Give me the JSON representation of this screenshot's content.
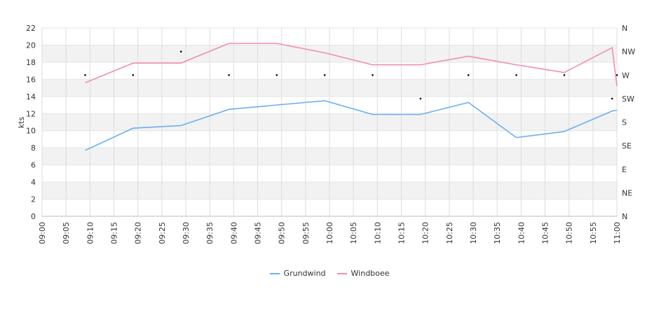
{
  "chart_data": {
    "type": "line",
    "ylabel": "kts",
    "ylim": [
      0,
      22
    ],
    "y_ticks": [
      "0",
      "2",
      "4",
      "6",
      "8",
      "10",
      "12",
      "14",
      "16",
      "18",
      "20",
      "22"
    ],
    "x_ticks": [
      "09:00",
      "09:05",
      "09:10",
      "09:15",
      "09:20",
      "09:25",
      "09:30",
      "09:35",
      "09:40",
      "09:45",
      "09:50",
      "09:55",
      "10:00",
      "10:05",
      "10:10",
      "10:15",
      "10:20",
      "10:25",
      "10:30",
      "10:35",
      "10:40",
      "10:45",
      "10:50",
      "10:55",
      "11:00"
    ],
    "x_range": [
      "09:00",
      "11:00"
    ],
    "right_axis_ticks": [
      "N",
      "NE",
      "E",
      "SE",
      "S",
      "SW",
      "W",
      "NW",
      "N"
    ],
    "grid": true,
    "legend_position": "bottom-center",
    "series": [
      {
        "name": "Grundwind",
        "color": "#6aaff0",
        "x": [
          "09:09",
          "09:19",
          "09:29",
          "09:39",
          "09:49",
          "09:59",
          "10:09",
          "10:19",
          "10:29",
          "10:39",
          "10:49",
          "10:59",
          "11:00"
        ],
        "values": [
          7.7,
          10.3,
          10.6,
          12.5,
          13.0,
          13.5,
          11.9,
          11.9,
          13.3,
          9.2,
          9.9,
          12.3,
          12.4
        ]
      },
      {
        "name": "Windboee",
        "color": "#f08cb8",
        "x": [
          "09:09",
          "09:19",
          "09:29",
          "09:39",
          "09:49",
          "09:59",
          "10:09",
          "10:19",
          "10:29",
          "10:39",
          "10:49",
          "10:59",
          "11:00"
        ],
        "values": [
          15.6,
          17.9,
          17.9,
          20.2,
          20.2,
          19.1,
          17.7,
          17.7,
          18.7,
          17.7,
          16.8,
          19.7,
          15.2
        ]
      }
    ],
    "direction": {
      "x": [
        "09:09",
        "09:19",
        "09:29",
        "09:39",
        "09:49",
        "09:59",
        "10:09",
        "10:19",
        "10:29",
        "10:39",
        "10:49",
        "10:59",
        "11:00"
      ],
      "values": [
        "W",
        "W",
        "NW",
        "W",
        "W",
        "W",
        "W",
        "SW",
        "W",
        "W",
        "W",
        "SW",
        "W"
      ]
    }
  }
}
